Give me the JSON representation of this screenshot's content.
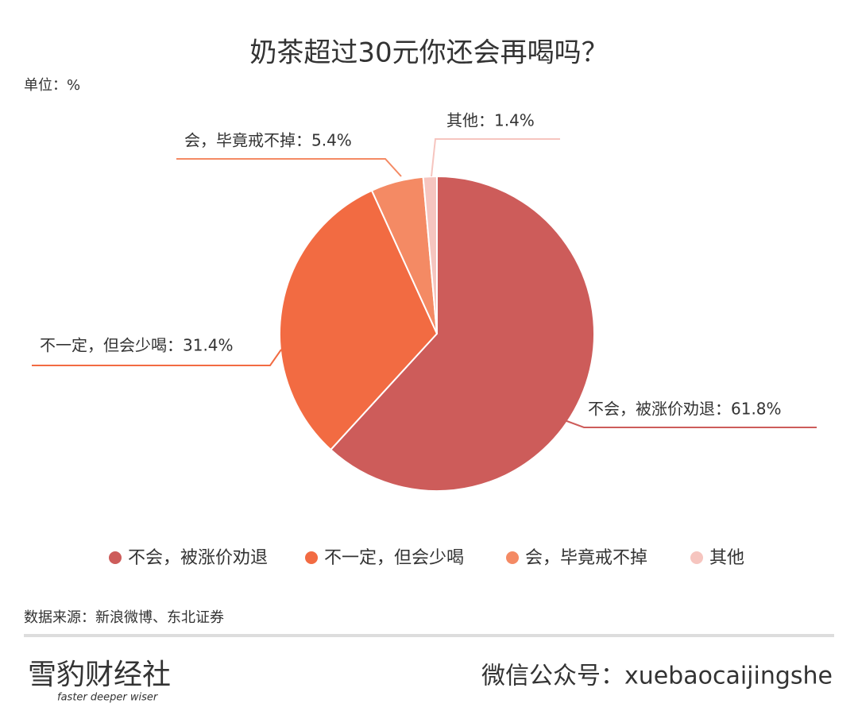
{
  "chart_data": {
    "type": "pie",
    "title": "奶茶超过30元你还会再喝吗？",
    "unit": "单位：%",
    "categories": [
      "不会，被涨价劝退",
      "不一定，但会少喝",
      "会，毕竟戒不掉",
      "其他"
    ],
    "values": [
      61.8,
      31.4,
      5.4,
      1.4
    ],
    "value_labels": [
      "不会，被涨价劝退：61.8%",
      "不一定，但会少喝：31.4%",
      "会，毕竟戒不掉：5.4%",
      "其他：1.4%"
    ],
    "colors": [
      "#cd5c5a",
      "#f26b42",
      "#f48a64",
      "#f6c5bf"
    ],
    "legend": "bottom",
    "source": "数据来源：新浪微博、东北证券",
    "logo": "雪豹财经社",
    "slogan": "faster deeper wiser",
    "footer": "微信公众号：xuebaocaijingshe"
  }
}
